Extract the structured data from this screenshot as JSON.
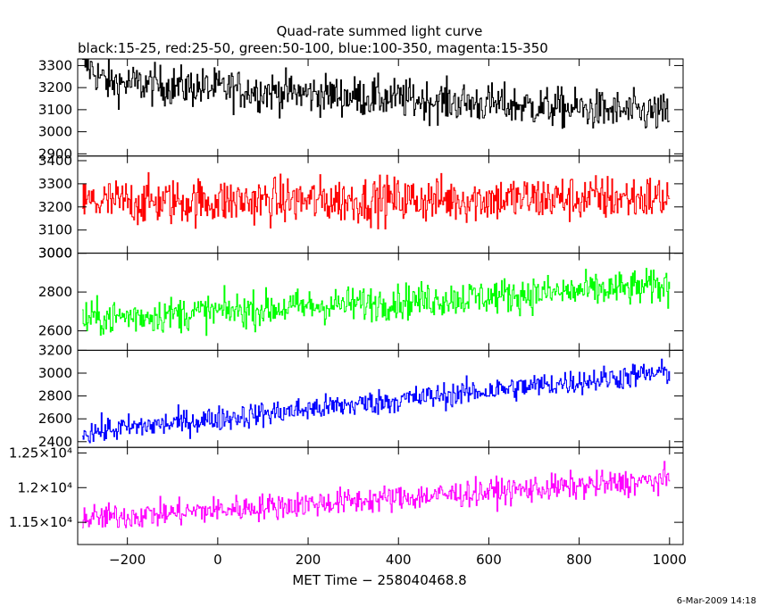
{
  "chart_data": {
    "type": "line",
    "title": "Quad-rate summed light curve",
    "subtitle": "black:15-25, red:25-50, green:50-100, blue:100-350, magenta:15-350",
    "xlabel": "MET Time − 258040468.8",
    "x_ticks": [
      "−200",
      "0",
      "200",
      "400",
      "600",
      "800",
      "1000"
    ],
    "x_tick_values": [
      -200,
      0,
      200,
      400,
      600,
      800,
      1000
    ],
    "xlim": [
      -310,
      1030
    ],
    "x_range": [
      -300,
      1000
    ],
    "footer": "6-Mar-2009 14:18",
    "panels": [
      {
        "band": "15-25",
        "color": "#000000",
        "ylim": [
          2890,
          3330
        ],
        "y_ticks": [
          "3300",
          "3200",
          "3100",
          "3000",
          "2900"
        ],
        "y_tick_values": [
          3300,
          3200,
          3100,
          3000,
          2900
        ],
        "start": 3230,
        "end": 3080,
        "noise": 45
      },
      {
        "band": "25-50",
        "color": "#ff0000",
        "ylim": [
          3000,
          3420
        ],
        "y_ticks": [
          "3400",
          "3300",
          "3200",
          "3100",
          "3000"
        ],
        "y_tick_values": [
          3400,
          3300,
          3200,
          3100,
          3000
        ],
        "start": 3220,
        "end": 3240,
        "noise": 50
      },
      {
        "band": "50-100",
        "color": "#00ff00",
        "ylim": [
          2500,
          3000
        ],
        "y_ticks": [
          "3000",
          "2800",
          "2600"
        ],
        "y_tick_values": [
          3000,
          2800,
          2600
        ],
        "start": 2660,
        "end": 2830,
        "noise": 45
      },
      {
        "band": "100-350",
        "color": "#0000ff",
        "ylim": [
          2350,
          3200
        ],
        "y_ticks": [
          "3200",
          "3000",
          "2800",
          "2600",
          "2400"
        ],
        "y_tick_values": [
          3200,
          3000,
          2800,
          2600,
          2400
        ],
        "start": 2480,
        "end": 3010,
        "noise": 55
      },
      {
        "band": "15-350",
        "color": "#ff00ff",
        "ylim": [
          11180,
          12580
        ],
        "y_ticks": [
          "1.25×10⁴",
          "1.2×10⁴",
          "1.15×10⁴"
        ],
        "y_tick_values": [
          12500,
          12000,
          11500
        ],
        "start": 11550,
        "end": 12110,
        "noise": 95
      }
    ]
  }
}
